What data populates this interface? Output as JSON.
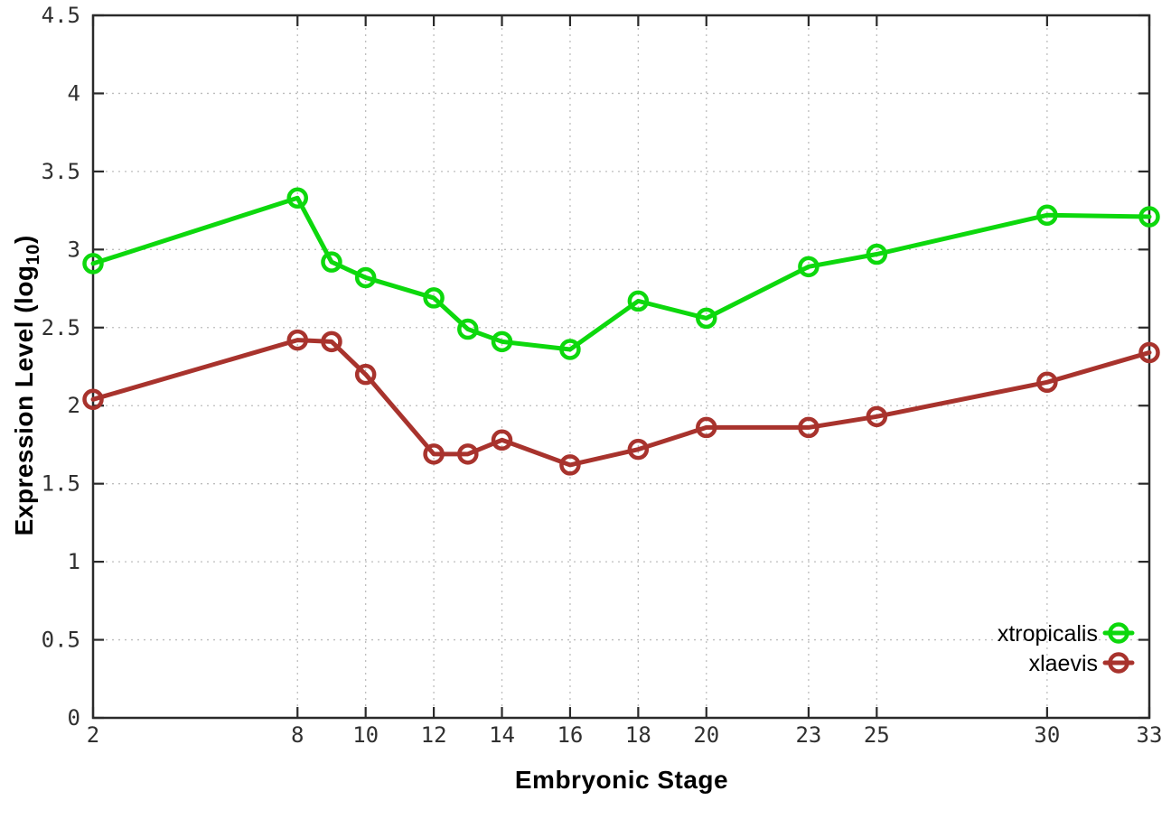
{
  "chart_data": {
    "type": "line",
    "title": "",
    "xlabel": "Embryonic Stage",
    "ylabel": {
      "pre": "Expression Level (log",
      "sub": "10",
      "post": ")"
    },
    "xlim": [
      2,
      33
    ],
    "ylim": [
      0,
      4.5
    ],
    "xticks": [
      2,
      8,
      10,
      12,
      14,
      16,
      18,
      20,
      23,
      25,
      30,
      33
    ],
    "yticks": [
      0,
      0.5,
      1,
      1.5,
      2,
      2.5,
      3,
      3.5,
      4,
      4.5
    ],
    "grid": true,
    "legend_position": "inside-bottom-right",
    "x": [
      2,
      8,
      9,
      10,
      12,
      13,
      14,
      16,
      18,
      20,
      23,
      25,
      30,
      33
    ],
    "series": [
      {
        "name": "xtropicalis",
        "color": "#0dd80d",
        "values": [
          2.91,
          3.33,
          2.92,
          2.82,
          2.69,
          2.49,
          2.41,
          2.36,
          2.67,
          2.56,
          2.89,
          2.97,
          3.22,
          3.21
        ]
      },
      {
        "name": "xlaevis",
        "color": "#a8332d",
        "values": [
          2.04,
          2.42,
          2.41,
          2.2,
          1.69,
          1.69,
          1.78,
          1.62,
          1.72,
          1.86,
          1.86,
          1.93,
          2.15,
          2.34
        ]
      }
    ],
    "colors": {
      "axis": "#2a2a2a",
      "grid": "#bdbdbd",
      "tick_label": "#303030"
    }
  }
}
